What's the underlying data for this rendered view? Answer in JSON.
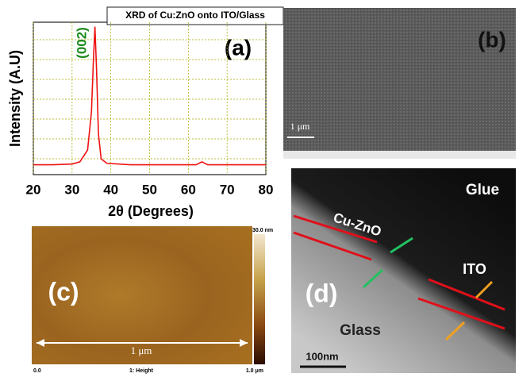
{
  "chart_data": {
    "type": "line",
    "title": "XRD of Cu:ZnO onto ITO/Glass",
    "panel_label": "(a)",
    "annotation": "(002)",
    "x_label": "2θ (Degrees)",
    "y_label": "Intensity (A.U)",
    "x": [
      20,
      25,
      30,
      32,
      33,
      34,
      35,
      35.5,
      35.9,
      36.3,
      36.8,
      37.5,
      39,
      45,
      55,
      62,
      63.5,
      65,
      70,
      80
    ],
    "values": [
      4,
      4,
      4.5,
      6,
      10,
      14,
      40,
      75,
      98,
      70,
      25,
      8,
      5,
      4,
      4,
      4,
      6,
      4,
      4,
      4
    ],
    "color": "#ee1111",
    "xlim": [
      20,
      80
    ],
    "xticks": [
      20,
      30,
      40,
      50,
      60,
      70,
      80
    ],
    "ylim": [
      0,
      100
    ],
    "grid": true
  },
  "panels": {
    "b": {
      "label": "(b)",
      "scale": "1 μm"
    },
    "c": {
      "label": "(c)",
      "scale": "1 μm",
      "colorbar_max": "30.0 nm",
      "axis_start": "0.0",
      "channel": "1: Height",
      "axis_end": "1.0 μm"
    },
    "d": {
      "label": "(d)",
      "glue": "Glue",
      "layer": "Cu-ZnO",
      "ito": "ITO",
      "glass": "Glass",
      "scale": "100nm"
    }
  }
}
